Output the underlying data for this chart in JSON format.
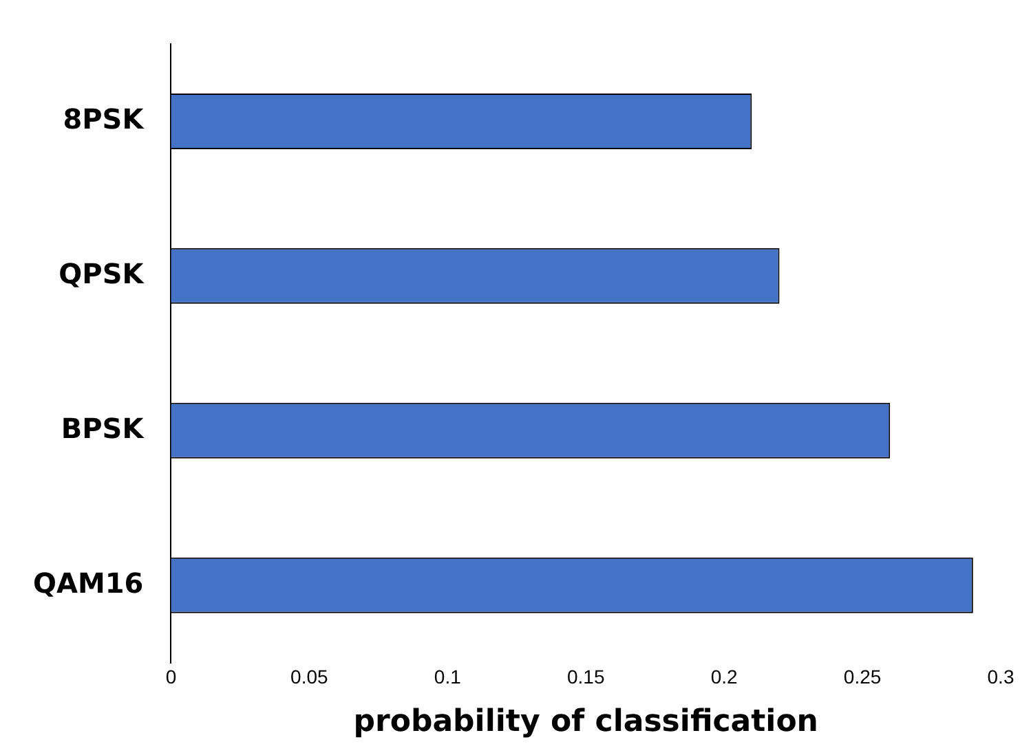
{
  "chart_data": {
    "type": "bar",
    "orientation": "horizontal",
    "categories": [
      "8PSK",
      "QPSK",
      "BPSK",
      "QAM16"
    ],
    "values": [
      0.21,
      0.22,
      0.26,
      0.29
    ],
    "color": "#4472c4",
    "xlabel": "probability of classification",
    "xlim": [
      0,
      0.3
    ],
    "xticks": [
      0,
      0.05,
      0.1,
      0.15,
      0.2,
      0.25,
      0.3
    ],
    "grid": false,
    "legend": false
  }
}
